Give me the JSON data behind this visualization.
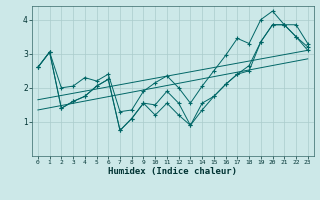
{
  "xlabel": "Humidex (Indice chaleur)",
  "xlim": [
    -0.5,
    23.5
  ],
  "ylim": [
    0,
    4.4
  ],
  "yticks": [
    1,
    2,
    3,
    4
  ],
  "xticks": [
    0,
    1,
    2,
    3,
    4,
    5,
    6,
    7,
    8,
    9,
    10,
    11,
    12,
    13,
    14,
    15,
    16,
    17,
    18,
    19,
    20,
    21,
    22,
    23
  ],
  "bg_color": "#cce8e8",
  "grid_color": "#aacccc",
  "line_color": "#006666",
  "series": {
    "main": {
      "x": [
        0,
        1,
        2,
        3,
        4,
        5,
        6,
        7,
        8,
        9,
        10,
        11,
        12,
        13,
        14,
        15,
        16,
        17,
        18,
        19,
        20,
        21,
        22,
        23
      ],
      "y": [
        2.6,
        3.05,
        1.4,
        1.6,
        1.75,
        2.05,
        2.25,
        0.75,
        1.1,
        1.55,
        1.5,
        1.9,
        1.55,
        0.9,
        1.55,
        1.75,
        2.1,
        2.4,
        2.65,
        3.35,
        3.85,
        3.85,
        3.5,
        3.2
      ]
    },
    "upper": {
      "x": [
        0,
        1,
        2,
        3,
        4,
        5,
        6,
        7,
        8,
        9,
        10,
        11,
        12,
        13,
        14,
        15,
        16,
        17,
        18,
        19,
        20,
        21,
        22,
        23
      ],
      "y": [
        2.6,
        3.05,
        2.0,
        2.05,
        2.3,
        2.2,
        2.4,
        1.3,
        1.35,
        1.9,
        2.15,
        2.35,
        2.0,
        1.55,
        2.05,
        2.5,
        2.95,
        3.45,
        3.3,
        4.0,
        4.25,
        3.85,
        3.85,
        3.3
      ]
    },
    "lower": {
      "x": [
        0,
        1,
        2,
        3,
        4,
        5,
        6,
        7,
        8,
        9,
        10,
        11,
        12,
        13,
        14,
        15,
        16,
        17,
        18,
        19,
        20,
        21,
        22,
        23
      ],
      "y": [
        2.6,
        3.05,
        1.4,
        1.6,
        1.75,
        2.05,
        2.25,
        0.75,
        1.1,
        1.55,
        1.2,
        1.55,
        1.2,
        0.9,
        1.35,
        1.75,
        2.1,
        2.4,
        2.5,
        3.35,
        3.85,
        3.85,
        3.5,
        3.1
      ]
    },
    "trend_high": {
      "x": [
        0,
        23
      ],
      "y": [
        1.65,
        3.1
      ]
    },
    "trend_low": {
      "x": [
        0,
        23
      ],
      "y": [
        1.35,
        2.85
      ]
    }
  }
}
